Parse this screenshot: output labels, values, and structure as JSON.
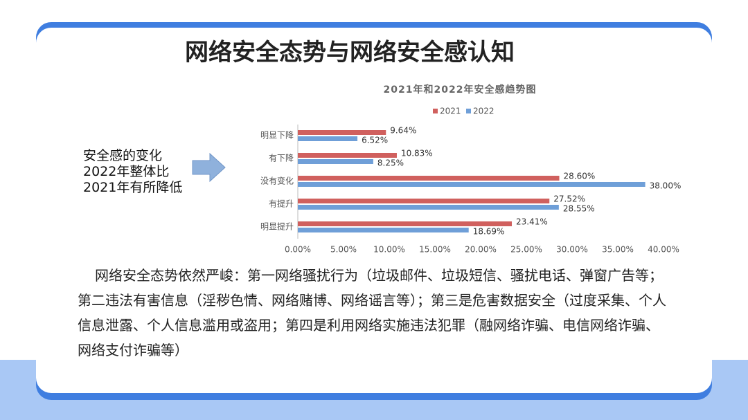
{
  "slide": {
    "title": "网络安全态势与网络安全感认知",
    "side_note": [
      "安全感的变化",
      "2022年整体比",
      "2021年有所降低"
    ],
    "paragraph": "网络安全态势依然严峻：第一网络骚扰行为（垃圾邮件、垃圾短信、骚扰电话、弹窗广告等；第二违法有害信息（淫秽色情、网络赌博、网络谣言等）；第三是危害数据安全（过度采集、个人信息泄露、个人信息滥用或盗用；第四是利用网络实施违法犯罪（融网络诈骗、电信网络诈骗、网络支付诈骗等）"
  },
  "chart_data": {
    "type": "hbar",
    "title": "2021年和2022年安全感趋势图",
    "categories": [
      "明显下降",
      "有下降",
      "没有变化",
      "有提升",
      "明显提升"
    ],
    "series": [
      {
        "name": "2021",
        "color": "#d0605e",
        "values": [
          9.64,
          10.83,
          28.6,
          27.52,
          23.41
        ],
        "value_labels": [
          "9.64%",
          "10.83%",
          "28.60%",
          "27.52%",
          "23.41%"
        ]
      },
      {
        "name": "2022",
        "color": "#6f9fd8",
        "values": [
          6.52,
          8.25,
          38.0,
          28.55,
          18.69
        ],
        "value_labels": [
          "6.52%",
          "8.25%",
          "38.00%",
          "28.55%",
          "18.69%"
        ]
      }
    ],
    "xlim": [
      0,
      40
    ],
    "xticks": [
      {
        "value": 0,
        "label": "0.00%"
      },
      {
        "value": 5,
        "label": "5.00%"
      },
      {
        "value": 10,
        "label": "10.00%"
      },
      {
        "value": 15,
        "label": "15.00%"
      },
      {
        "value": 20,
        "label": "20.00%"
      },
      {
        "value": 25,
        "label": "25.00%"
      },
      {
        "value": 30,
        "label": "30.00%"
      },
      {
        "value": 35,
        "label": "35.00%"
      },
      {
        "value": 40,
        "label": "40.00%"
      }
    ],
    "legend": "top",
    "grid": false
  }
}
